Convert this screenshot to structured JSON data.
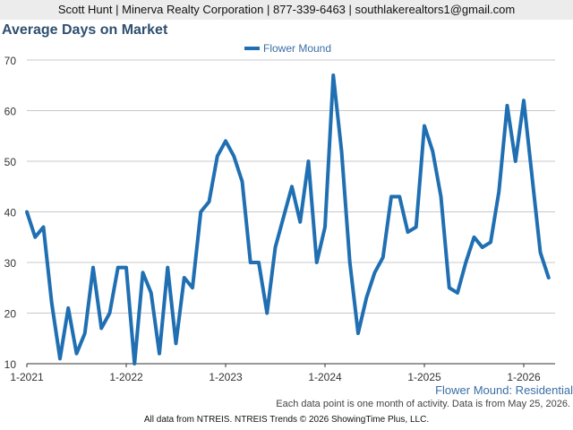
{
  "header": {
    "text": "Scott Hunt | Minerva Realty Corporation | 877-339-6463 | southlakerealtors1@gmail.com"
  },
  "chart_data": {
    "type": "line",
    "title": "Average Days on Market",
    "subtitle": "Flower Mound: Residential",
    "xlabel": "",
    "ylabel": "",
    "ylim": [
      10,
      70
    ],
    "y_ticks": [
      10,
      20,
      30,
      40,
      50,
      60,
      70
    ],
    "x_ticks": [
      "1-2021",
      "1-2022",
      "1-2023",
      "1-2024",
      "1-2025",
      "1-2026"
    ],
    "grid": true,
    "legend_position": "top-center",
    "series_color": "#1f6fb2",
    "x": [
      "2021-01",
      "2021-02",
      "2021-03",
      "2021-04",
      "2021-05",
      "2021-06",
      "2021-07",
      "2021-08",
      "2021-09",
      "2021-10",
      "2021-11",
      "2021-12",
      "2022-01",
      "2022-02",
      "2022-03",
      "2022-04",
      "2022-05",
      "2022-06",
      "2022-07",
      "2022-08",
      "2022-09",
      "2022-10",
      "2022-11",
      "2022-12",
      "2023-01",
      "2023-02",
      "2023-03",
      "2023-04",
      "2023-05",
      "2023-06",
      "2023-07",
      "2023-08",
      "2023-09",
      "2023-10",
      "2023-11",
      "2023-12",
      "2024-01",
      "2024-02",
      "2024-03",
      "2024-04",
      "2024-05",
      "2024-06",
      "2024-07",
      "2024-08",
      "2024-09",
      "2024-10",
      "2024-11",
      "2024-12",
      "2025-01",
      "2025-02",
      "2025-03",
      "2025-04",
      "2025-05",
      "2025-06",
      "2025-07",
      "2025-08",
      "2025-09",
      "2025-10",
      "2025-11",
      "2025-12",
      "2026-01",
      "2026-02",
      "2026-03",
      "2026-04"
    ],
    "series": [
      {
        "name": "Flower Mound",
        "values": [
          40,
          35,
          37,
          22,
          11,
          21,
          12,
          16,
          29,
          17,
          20,
          29,
          29,
          10,
          28,
          24,
          12,
          29,
          14,
          27,
          25,
          40,
          42,
          51,
          54,
          51,
          46,
          30,
          30,
          20,
          33,
          39,
          45,
          38,
          50,
          30,
          37,
          67,
          52,
          30,
          16,
          23,
          28,
          31,
          43,
          43,
          36,
          37,
          57,
          52,
          43,
          25,
          24,
          30,
          35,
          33,
          34,
          44,
          61,
          50,
          62,
          47,
          32,
          27
        ]
      }
    ]
  },
  "note": "Each data point is one month of activity. Data is from May 25, 2026.",
  "footer": "All data from NTREIS. NTREIS Trends © 2026 ShowingTime Plus, LLC."
}
